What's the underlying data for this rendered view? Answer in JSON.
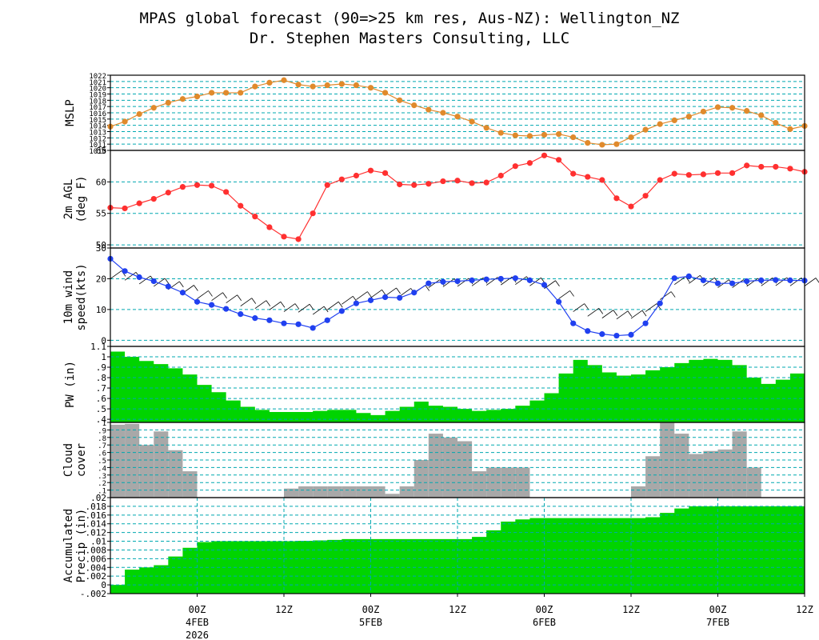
{
  "header": {
    "title": "MPAS global forecast (90=>25 km res, Aus-NZ): Wellington_NZ",
    "subtitle": "Dr. Stephen Masters Consulting, LLC"
  },
  "colors": {
    "grid": "#00a8b0",
    "mslp": "#e08a2c",
    "temp": "#ff3030",
    "wind": "#2040f0",
    "pw": "#00d400",
    "cloud": "#a8a8a8",
    "precip": "#00d400",
    "axis": "#000000"
  },
  "x_axis": {
    "ticks": [
      {
        "hour": 12,
        "label": "00Z",
        "date": "4FEB",
        "year": "2026"
      },
      {
        "hour": 24,
        "label": "12Z",
        "date": "",
        "year": ""
      },
      {
        "hour": 36,
        "label": "00Z",
        "date": "5FEB",
        "year": ""
      },
      {
        "hour": 48,
        "label": "12Z",
        "date": "",
        "year": ""
      },
      {
        "hour": 60,
        "label": "00Z",
        "date": "6FEB",
        "year": ""
      },
      {
        "hour": 72,
        "label": "12Z",
        "date": "",
        "year": ""
      },
      {
        "hour": 84,
        "label": "00Z",
        "date": "7FEB",
        "year": ""
      },
      {
        "hour": 96,
        "label": "12Z",
        "date": "",
        "year": ""
      }
    ]
  },
  "chart_data": [
    {
      "type": "line",
      "ylabel": "MSLP",
      "ylim": [
        1010,
        1022
      ],
      "yticks": [
        1010,
        1011,
        1012,
        1013,
        1014,
        1015,
        1016,
        1017,
        1018,
        1019,
        1020,
        1021,
        1022
      ],
      "x": [
        0,
        2,
        4,
        6,
        8,
        10,
        12,
        14,
        16,
        18,
        20,
        22,
        24,
        26,
        28,
        30,
        32,
        34,
        36,
        38,
        40,
        42,
        44,
        46,
        48,
        50,
        52,
        54,
        56,
        58,
        60,
        62,
        64,
        66,
        68,
        70,
        72,
        74,
        76,
        78,
        80,
        82,
        84,
        86,
        88,
        90,
        92,
        94,
        96
      ],
      "values": [
        1013.8,
        1014.6,
        1015.8,
        1016.8,
        1017.6,
        1018.2,
        1018.6,
        1019.2,
        1019.2,
        1019.2,
        1020.2,
        1020.8,
        1021.2,
        1020.5,
        1020.2,
        1020.4,
        1020.6,
        1020.4,
        1020,
        1019.2,
        1018,
        1017.2,
        1016.5,
        1016,
        1015.4,
        1014.6,
        1013.6,
        1012.8,
        1012.4,
        1012.3,
        1012.5,
        1012.6,
        1012.1,
        1011.2,
        1010.9,
        1011,
        1012.1,
        1013.3,
        1014.2,
        1014.8,
        1015.4,
        1016.2,
        1016.9,
        1016.8,
        1016.3,
        1015.6,
        1014.4,
        1013.4,
        1013.9
      ]
    },
    {
      "type": "line",
      "ylabel": "2m AGL",
      "ylabel2": "(deg F)",
      "ylim": [
        49.5,
        65
      ],
      "yticks": [
        50,
        55,
        60,
        65
      ],
      "x": [
        0,
        2,
        4,
        6,
        8,
        10,
        12,
        14,
        16,
        18,
        20,
        22,
        24,
        26,
        28,
        30,
        32,
        34,
        36,
        38,
        40,
        42,
        44,
        46,
        48,
        50,
        52,
        54,
        56,
        58,
        60,
        62,
        64,
        66,
        68,
        70,
        72,
        74,
        76,
        78,
        80,
        82,
        84,
        86,
        88,
        90,
        92,
        94,
        96
      ],
      "values": [
        55.9,
        55.8,
        56.6,
        57.3,
        58.3,
        59.2,
        59.5,
        59.4,
        58.4,
        56.2,
        54.5,
        52.8,
        51.3,
        50.9,
        55.0,
        59.5,
        60.4,
        61.0,
        61.8,
        61.4,
        59.6,
        59.5,
        59.7,
        60.1,
        60.2,
        59.8,
        59.9,
        61.0,
        62.5,
        63.0,
        64.2,
        63.5,
        61.3,
        60.8,
        60.3,
        57.4,
        56.1,
        57.8,
        60.3,
        61.3,
        61.1,
        61.2,
        61.4,
        61.4,
        62.6,
        62.4,
        62.4,
        62.1,
        61.6
      ]
    },
    {
      "type": "line",
      "ylabel": "10m wind",
      "ylabel2": "speed(kts)",
      "ylim": [
        -2,
        30
      ],
      "yticks": [
        0,
        10,
        20,
        30
      ],
      "x": [
        0,
        2,
        4,
        6,
        8,
        10,
        12,
        14,
        16,
        18,
        20,
        22,
        24,
        26,
        28,
        30,
        32,
        34,
        36,
        38,
        40,
        42,
        44,
        46,
        48,
        50,
        52,
        54,
        56,
        58,
        60,
        62,
        64,
        66,
        68,
        70,
        72,
        74,
        76,
        78,
        80,
        82,
        84,
        86,
        88,
        90,
        92,
        94,
        96
      ],
      "values": [
        26.5,
        22.5,
        20.5,
        19.2,
        17.5,
        15.5,
        12.5,
        11.5,
        10.2,
        8.5,
        7.2,
        6.5,
        5.5,
        5.2,
        4.0,
        6.5,
        9.5,
        12.0,
        13.0,
        14.0,
        13.8,
        15.5,
        18.5,
        19.0,
        19.2,
        19.5,
        19.8,
        20.0,
        20.2,
        19.5,
        18.0,
        12.5,
        5.5,
        3.0,
        2.0,
        1.5,
        1.8,
        5.5,
        12.0,
        20.2,
        20.8,
        19.5,
        18.5,
        18.5,
        19.2,
        19.5,
        19.6,
        19.5,
        19.4
      ]
    },
    {
      "type": "area",
      "ylabel": "PW (in)",
      "ylim": [
        0.37,
        1.1
      ],
      "yticks": [
        0.4,
        0.5,
        0.6,
        0.7,
        0.8,
        0.9,
        1,
        1.1
      ],
      "x": [
        0,
        2,
        4,
        6,
        8,
        10,
        12,
        14,
        16,
        18,
        20,
        22,
        24,
        26,
        28,
        30,
        32,
        34,
        36,
        38,
        40,
        42,
        44,
        46,
        48,
        50,
        52,
        54,
        56,
        58,
        60,
        62,
        64,
        66,
        68,
        70,
        72,
        74,
        76,
        78,
        80,
        82,
        84,
        86,
        88,
        90,
        92,
        94,
        96
      ],
      "values": [
        1.05,
        1.0,
        0.96,
        0.93,
        0.89,
        0.83,
        0.73,
        0.66,
        0.58,
        0.52,
        0.49,
        0.47,
        0.47,
        0.47,
        0.48,
        0.49,
        0.49,
        0.46,
        0.44,
        0.48,
        0.52,
        0.57,
        0.53,
        0.52,
        0.5,
        0.48,
        0.49,
        0.5,
        0.53,
        0.58,
        0.65,
        0.84,
        0.97,
        0.92,
        0.85,
        0.82,
        0.83,
        0.87,
        0.9,
        0.94,
        0.97,
        0.98,
        0.97,
        0.92,
        0.8,
        0.74,
        0.78,
        0.84,
        0.85
      ]
    },
    {
      "type": "bar",
      "ylabel": "Cloud",
      "ylabel2": "cover",
      "ylim": [
        0,
        1
      ],
      "yticks": [
        0.1,
        0.2,
        0.3,
        0.4,
        0.5,
        0.6,
        0.7,
        0.8,
        0.9,
        1
      ],
      "x": [
        0,
        2,
        4,
        6,
        8,
        10,
        12,
        14,
        16,
        18,
        20,
        22,
        24,
        26,
        28,
        30,
        32,
        34,
        36,
        38,
        40,
        42,
        44,
        46,
        48,
        50,
        52,
        54,
        56,
        58,
        60,
        62,
        64,
        66,
        68,
        70,
        72,
        74,
        76,
        78,
        80,
        82,
        84,
        86,
        88,
        90,
        92,
        94,
        96
      ],
      "values": [
        0.97,
        0.98,
        0.7,
        0.88,
        0.63,
        0.35,
        0,
        0,
        0,
        0,
        0,
        0,
        0.12,
        0.15,
        0.15,
        0.15,
        0.15,
        0.15,
        0.15,
        0.05,
        0.15,
        0.5,
        0.85,
        0.8,
        0.75,
        0.35,
        0.4,
        0.4,
        0.4,
        0,
        0,
        0,
        0,
        0,
        0,
        0,
        0.15,
        0.55,
        1.0,
        0.85,
        0.58,
        0.62,
        0.64,
        0.88,
        0.4,
        0,
        0,
        0,
        0
      ]
    },
    {
      "type": "area",
      "ylabel": "Accumulated",
      "ylabel2": "Precip (in)",
      "ylim": [
        -0.002,
        0.02
      ],
      "yticks": [
        -0.002,
        0,
        0.002,
        0.004,
        0.006,
        0.008,
        0.01,
        0.012,
        0.014,
        0.016,
        0.018,
        0.02
      ],
      "x": [
        0,
        2,
        4,
        6,
        8,
        10,
        12,
        14,
        16,
        18,
        20,
        22,
        24,
        26,
        28,
        30,
        32,
        34,
        36,
        38,
        40,
        42,
        44,
        46,
        48,
        50,
        52,
        54,
        56,
        58,
        60,
        62,
        64,
        66,
        68,
        70,
        72,
        74,
        76,
        78,
        80,
        82,
        84,
        86,
        88,
        90,
        92,
        94,
        96
      ],
      "values": [
        0.0,
        0.0035,
        0.004,
        0.0045,
        0.0065,
        0.0085,
        0.0098,
        0.01,
        0.01,
        0.01,
        0.01,
        0.01,
        0.01,
        0.0101,
        0.0102,
        0.0103,
        0.0105,
        0.0105,
        0.0105,
        0.0105,
        0.0105,
        0.0105,
        0.0105,
        0.0105,
        0.0105,
        0.011,
        0.0125,
        0.0145,
        0.015,
        0.0153,
        0.0153,
        0.0153,
        0.0153,
        0.0153,
        0.0153,
        0.0153,
        0.0153,
        0.0155,
        0.0165,
        0.0175,
        0.018,
        0.018,
        0.018,
        0.018,
        0.018,
        0.018,
        0.018,
        0.018,
        0.018
      ]
    }
  ]
}
